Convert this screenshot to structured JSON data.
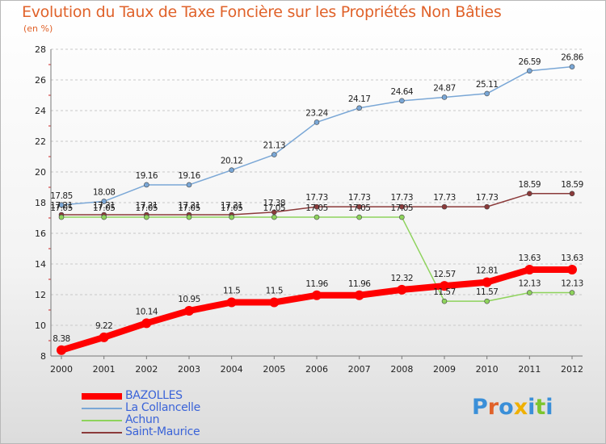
{
  "page": {
    "title": "Evolution du Taux de Taxe Foncière sur les Propriétés Non Bâties",
    "unit": "(en %)",
    "logo": [
      "P",
      "r",
      "o",
      "x",
      "i",
      "t",
      "i"
    ],
    "logo_colors": [
      "#3a8fd8",
      "#e0622a",
      "#3a8fd8",
      "#f0b000",
      "#3a8fd8",
      "#7cc52e",
      "#3a8fd8"
    ]
  },
  "chart_data": {
    "type": "line",
    "title": "Evolution du Taux de Taxe Foncière sur les Propriétés Non Bâties",
    "ylabel": "(en %)",
    "xlabel": "",
    "x": [
      "2000",
      "2001",
      "2002",
      "2003",
      "2004",
      "2005",
      "2006",
      "2007",
      "2008",
      "2009",
      "2010",
      "2011",
      "2012"
    ],
    "ylim": [
      8,
      28
    ],
    "yticks": [
      8,
      10,
      12,
      14,
      16,
      18,
      20,
      22,
      24,
      26,
      28
    ],
    "grid": "horizontal-dashed",
    "legend_position": "bottom-left",
    "series": [
      {
        "name": "BAZOLLES",
        "color": "#ff0000",
        "values": [
          8.38,
          9.22,
          10.14,
          10.95,
          11.5,
          11.5,
          11.96,
          11.96,
          12.32,
          12.57,
          12.81,
          13.63,
          13.63
        ],
        "labels": [
          "8.38",
          "9.22",
          "10.14",
          "10.95",
          "11.5",
          "11.5",
          "11.96",
          "11.96",
          "12.32",
          "12.57",
          "12.81",
          "13.63",
          "13.63"
        ]
      },
      {
        "name": "La Collancelle",
        "color": "#7aa7d6",
        "values": [
          17.85,
          18.08,
          19.16,
          19.16,
          20.12,
          21.13,
          23.24,
          24.17,
          24.64,
          24.87,
          25.11,
          26.59,
          26.86
        ],
        "labels": [
          "17.85",
          "18.08",
          "19.16",
          "19.16",
          "20.12",
          "21.13",
          "23.24",
          "24.17",
          "24.64",
          "24.87",
          "25.11",
          "26.59",
          "26.86"
        ]
      },
      {
        "name": "Achun",
        "color": "#8ed35c",
        "values": [
          17.05,
          17.05,
          17.05,
          17.05,
          17.05,
          17.05,
          17.05,
          17.05,
          17.05,
          11.57,
          11.57,
          12.13,
          12.13
        ],
        "labels": [
          "17.05",
          "17.05",
          "17.05",
          "17.05",
          "17.05",
          "17.05",
          "17.05",
          "17.05",
          "17.05",
          "11.57",
          "11.57",
          "12.13",
          "12.13"
        ]
      },
      {
        "name": "Saint-Maurice",
        "color": "#8b3a3a",
        "values": [
          17.21,
          17.21,
          17.21,
          17.21,
          17.21,
          17.38,
          17.73,
          17.73,
          17.73,
          17.73,
          17.73,
          18.59,
          18.59
        ],
        "labels": [
          "17.21",
          "17.21",
          "17.21",
          "17.21",
          "17.21",
          "17.38",
          "17.73",
          "17.73",
          "17.73",
          "17.73",
          "17.73",
          "18.59",
          "18.59"
        ]
      }
    ]
  }
}
